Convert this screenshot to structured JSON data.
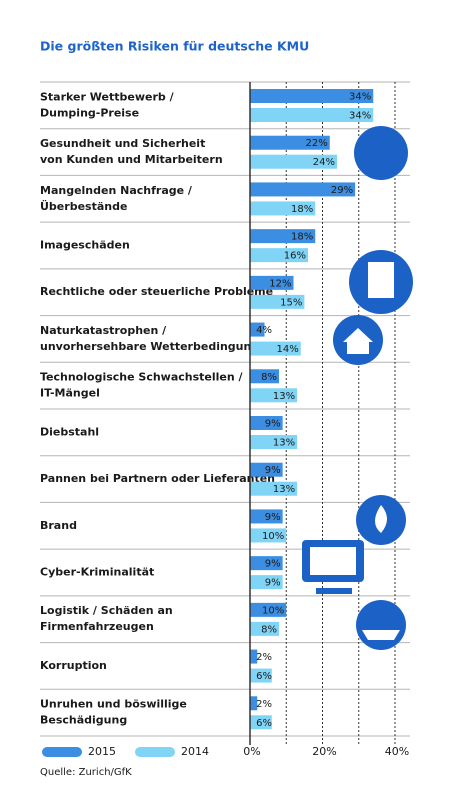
{
  "chart_data": {
    "type": "bar",
    "orientation": "horizontal",
    "title": "Die größten Risiken für deutsche KMU",
    "source": "Quelle: Zurich/GfK",
    "categories": [
      [
        "Starker Wettbewerb /",
        "Dumping-Preise"
      ],
      [
        "Gesundheit und Sicherheit",
        "von Kunden und Mitarbeitern"
      ],
      [
        "Mangelnden Nachfrage /",
        "Überbestände"
      ],
      [
        "Imageschäden"
      ],
      [
        "Rechtliche oder steuerliche Probleme"
      ],
      [
        "Naturkatastrophen /",
        "unvorhersehbare Wetterbedingungen"
      ],
      [
        "Technologische Schwachstellen /",
        "IT-Mängel"
      ],
      [
        "Diebstahl"
      ],
      [
        "Pannen bei Partnern oder Lieferanten"
      ],
      [
        "Brand"
      ],
      [
        "Cyber-Kriminalität"
      ],
      [
        "Logistik / Schäden an",
        "Firmenfahrzeugen"
      ],
      [
        "Korruption"
      ],
      [
        "Unruhen und böswillige",
        "Beschädigung"
      ]
    ],
    "series": [
      {
        "name": "2015",
        "color": "#3b8ee2",
        "values": [
          34,
          22,
          29,
          18,
          12,
          4,
          8,
          9,
          9,
          9,
          9,
          10,
          2,
          2
        ],
        "value_labels": [
          "34%",
          "22%",
          "29%",
          "18%",
          "12%",
          "4%",
          "8%",
          "9%",
          "9%",
          "9%",
          "9%",
          "10%",
          "2%",
          "2%"
        ]
      },
      {
        "name": "2014",
        "color": "#80d4f6",
        "values": [
          34,
          24,
          18,
          16,
          15,
          14,
          13,
          13,
          13,
          10,
          9,
          8,
          6,
          6
        ],
        "value_labels": [
          "34%",
          "24%",
          "18%",
          "16%",
          "15%",
          "14%",
          "13%",
          "13%",
          "13%",
          "10%",
          "9%",
          "8%",
          "6%",
          "6%"
        ]
      }
    ],
    "xlim": [
      0,
      40
    ],
    "xticks": [
      {
        "value": 0,
        "label": "0%"
      },
      {
        "value": 20,
        "label": "20%"
      },
      {
        "value": 40,
        "label": "40%"
      }
    ],
    "minor_xticks": [
      10,
      30
    ],
    "grid": true
  }
}
